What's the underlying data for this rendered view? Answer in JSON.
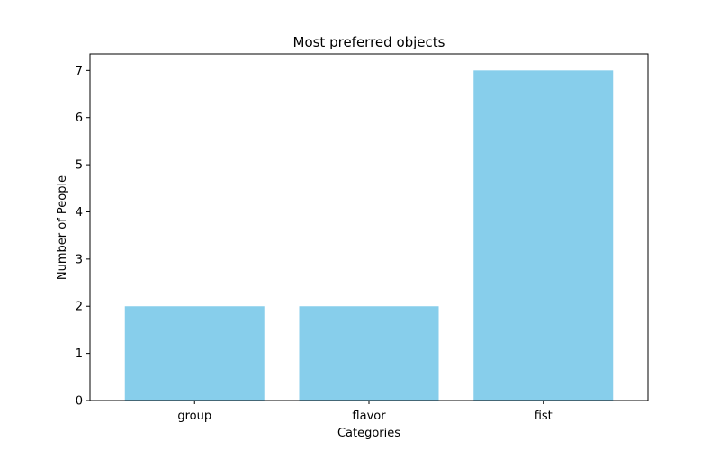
{
  "chart_data": {
    "type": "bar",
    "title": "Most preferred objects",
    "xlabel": "Categories",
    "ylabel": "Number of People",
    "categories": [
      "group",
      "flavor",
      "fist"
    ],
    "values": [
      2,
      2,
      7
    ],
    "ylim": [
      0,
      7.35
    ],
    "yticks": [
      "0",
      "1",
      "2",
      "3",
      "4",
      "5",
      "6",
      "7"
    ],
    "bar_color": "#87ceeb",
    "grid": false,
    "legend": "none"
  }
}
